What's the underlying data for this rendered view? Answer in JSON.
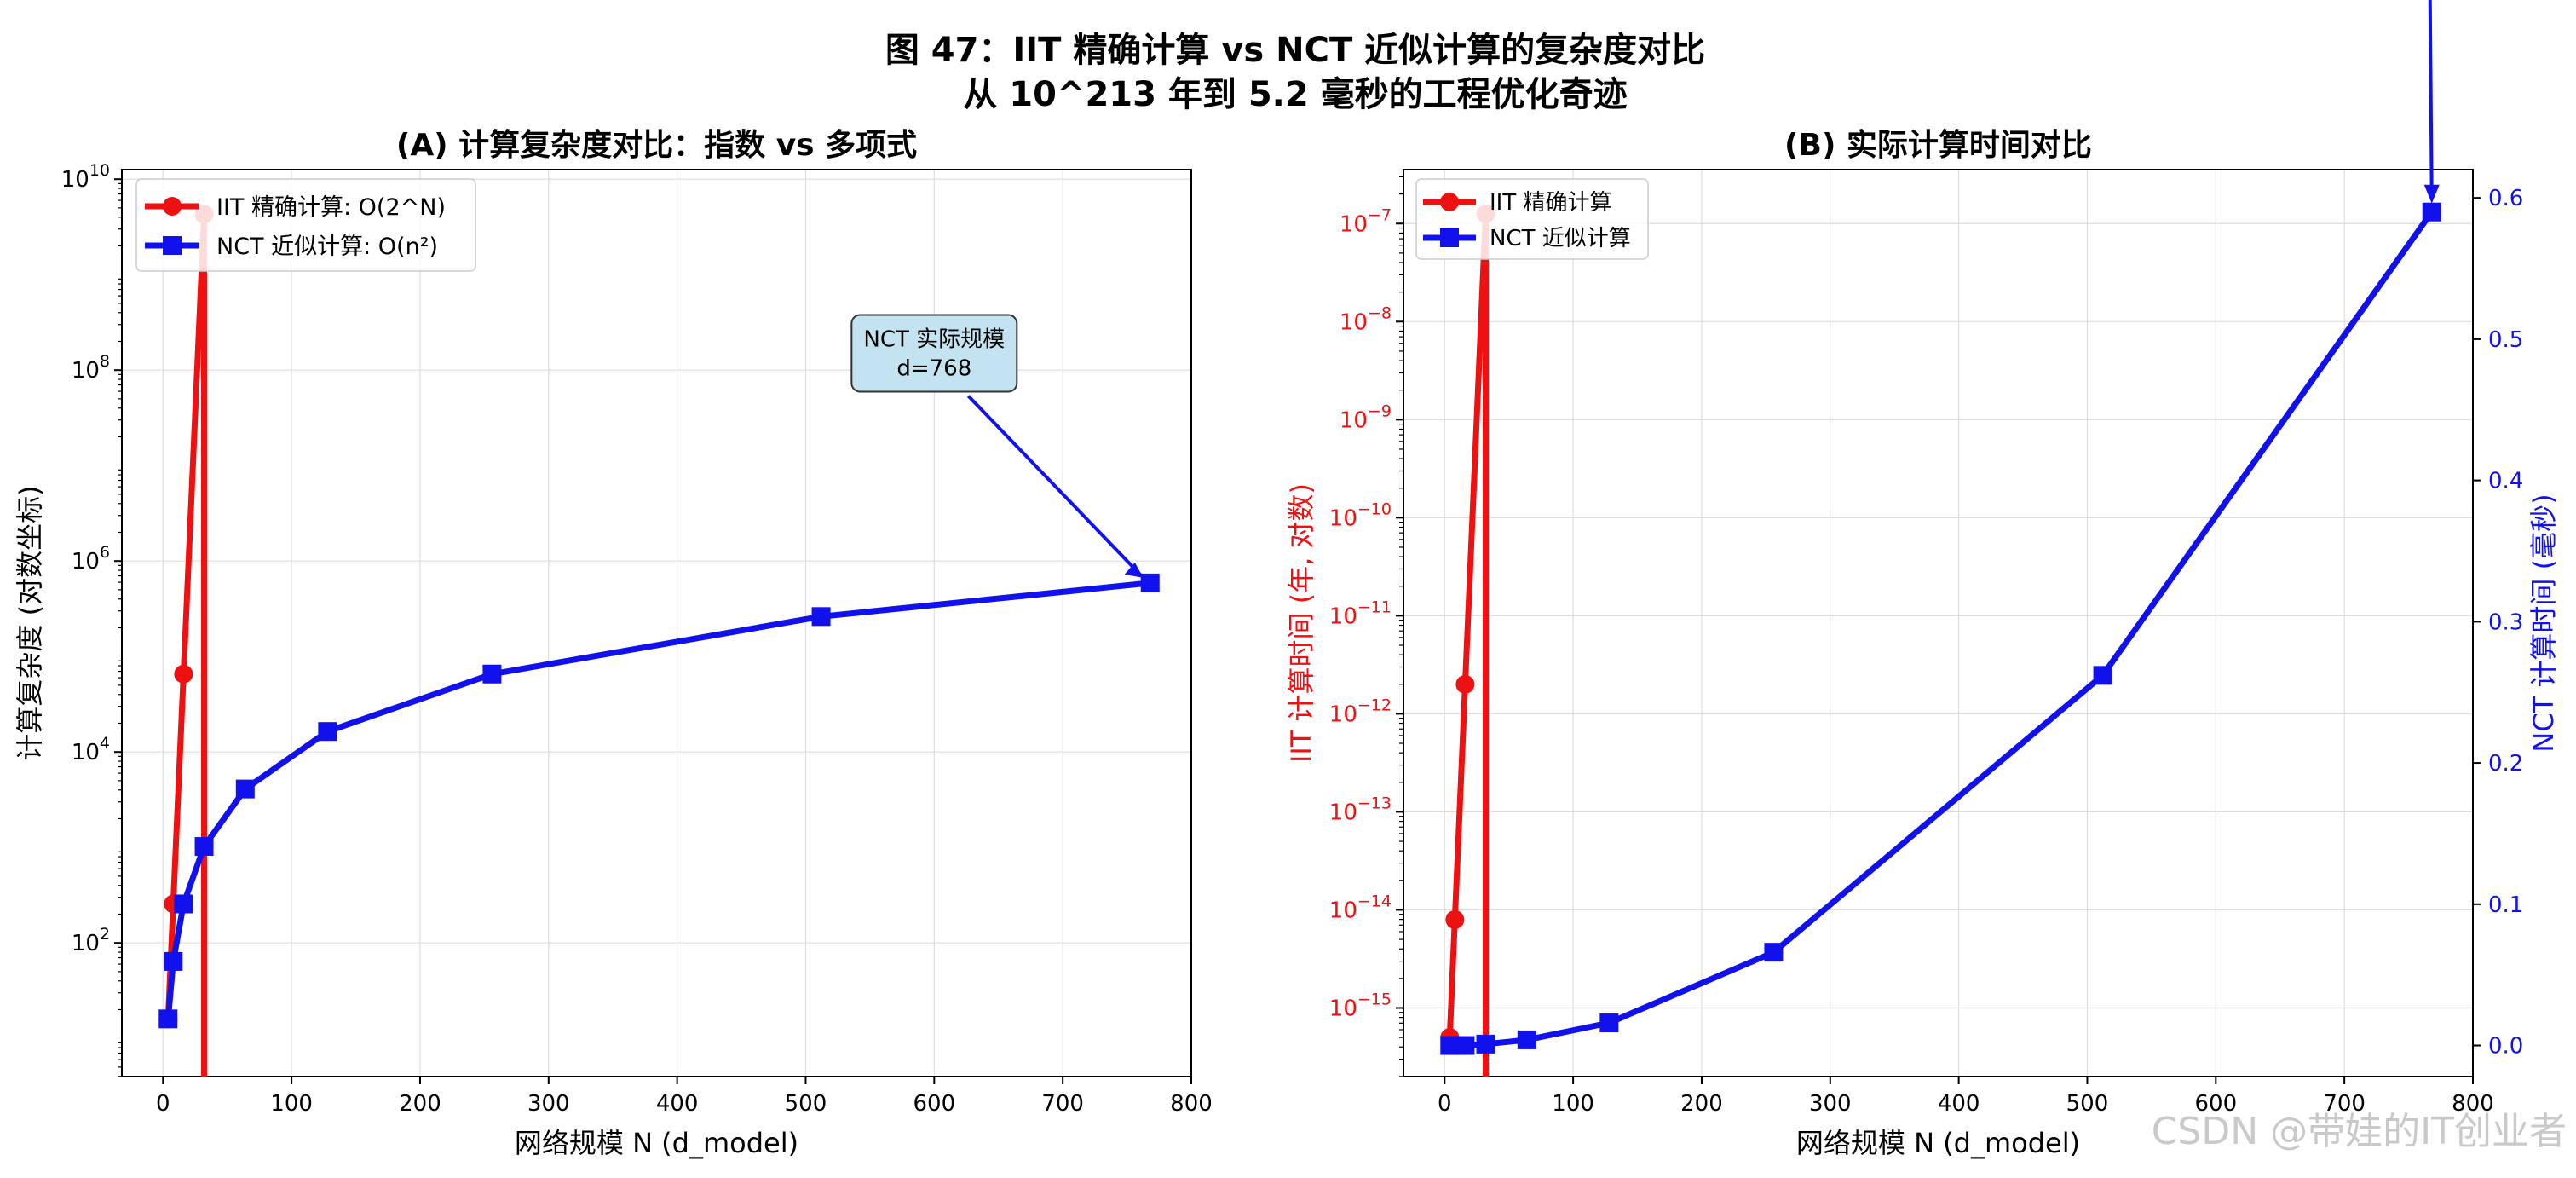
{
  "title": "图 47：IIT 精确计算 vs NCT 近似计算的复杂度对比",
  "subtitle": "从 10^213 年到 5.2 毫秒的工程优化奇迹",
  "watermark": "CSDN @带娃的IT创业者",
  "colors": {
    "iit": "#ee1111",
    "nct": "#1111ee",
    "annotation_bg": "#c2e3ef"
  },
  "chart_data": [
    {
      "id": "A",
      "type": "line",
      "title": "(A) 计算复杂度对比：指数 vs 多项式",
      "xlabel": "网络规模 N (d_model)",
      "ylabel": "计算复杂度 (对数坐标)",
      "xlim": [
        -32,
        800
      ],
      "ylim_log10": [
        0.6,
        10.1
      ],
      "y_scale": "log",
      "grid": true,
      "legend": "top-left",
      "x_ticks": [
        0,
        100,
        200,
        300,
        400,
        500,
        600,
        700,
        800
      ],
      "y_ticks": [
        {
          "exp": 2,
          "label": "10",
          "sup": "2"
        },
        {
          "exp": 4,
          "label": "10",
          "sup": "4"
        },
        {
          "exp": 6,
          "label": "10",
          "sup": "6"
        },
        {
          "exp": 8,
          "label": "10",
          "sup": "8"
        },
        {
          "exp": 10,
          "label": "10",
          "sup": "10"
        }
      ],
      "series": [
        {
          "name": "IIT 精确计算: O(2^N)",
          "color": "#ee1111",
          "marker": "circle",
          "x": [
            4,
            8,
            16,
            32
          ],
          "y": [
            16,
            256,
            65536,
            4294967296
          ],
          "drop_to_bottom_at_x": 32
        },
        {
          "name": "NCT 近似计算: O(n²)",
          "color": "#1111ee",
          "marker": "square",
          "x": [
            4,
            8,
            16,
            32,
            64,
            128,
            256,
            512,
            768
          ],
          "y": [
            16,
            64,
            256,
            1024,
            4096,
            16384,
            65536,
            262144,
            589824
          ]
        }
      ],
      "annotation": {
        "lines": [
          "NCT 实际规模",
          "d=768"
        ],
        "target_x": 768,
        "target_y": 589824,
        "text_x": 600,
        "text_y": 150000000
      }
    },
    {
      "id": "B",
      "type": "line",
      "title": "(B) 实际计算时间对比",
      "xlabel": "网络规模 N (d_model)",
      "ylabel_left": "IIT 计算时间 (年, 对数)",
      "ylabel_right": "NCT 计算时间 (毫秒)",
      "xlim": [
        -32,
        800
      ],
      "ylim_left_log10": [
        -15.7,
        -6.45
      ],
      "ylim_right": [
        -0.022,
        0.62
      ],
      "grid": true,
      "legend": "top-left",
      "x_ticks": [
        0,
        100,
        200,
        300,
        400,
        500,
        600,
        700,
        800
      ],
      "y_ticks_left": [
        {
          "exp": -7,
          "label": "10",
          "sup": "−7"
        },
        {
          "exp": -8,
          "label": "10",
          "sup": "−8"
        },
        {
          "exp": -9,
          "label": "10",
          "sup": "−9"
        },
        {
          "exp": -10,
          "label": "10",
          "sup": "−10"
        },
        {
          "exp": -11,
          "label": "10",
          "sup": "−11"
        },
        {
          "exp": -12,
          "label": "10",
          "sup": "−12"
        },
        {
          "exp": -13,
          "label": "10",
          "sup": "−13"
        },
        {
          "exp": -14,
          "label": "10",
          "sup": "−14"
        },
        {
          "exp": -15,
          "label": "10",
          "sup": "−15"
        }
      ],
      "y_ticks_right": [
        "0.0",
        "0.1",
        "0.2",
        "0.3",
        "0.4",
        "0.5",
        "0.6"
      ],
      "series": [
        {
          "name": "IIT 精确计算",
          "color": "#ee1111",
          "marker": "circle",
          "axis": "left",
          "x": [
            4,
            8,
            16,
            32
          ],
          "y_log10": [
            -15.3,
            -14.1,
            -11.7,
            -6.9
          ],
          "drop_to_bottom_at_x": 32
        },
        {
          "name": "NCT 近似计算",
          "color": "#1111ee",
          "marker": "square",
          "axis": "right",
          "x": [
            4,
            8,
            16,
            32,
            64,
            128,
            256,
            512,
            768
          ],
          "y": [
            0.0,
            0.0,
            0.0,
            0.001,
            0.004,
            0.016,
            0.066,
            0.262,
            0.59
          ]
        }
      ]
    }
  ]
}
